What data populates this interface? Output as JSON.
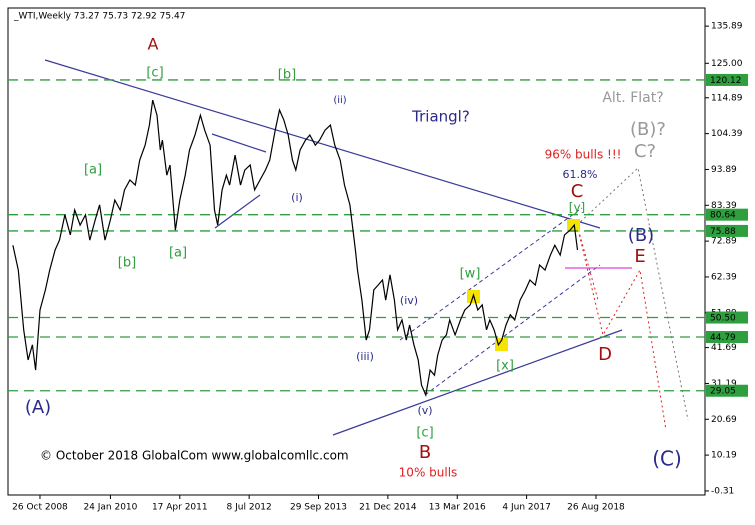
{
  "chart_data": {
    "type": "line",
    "title": "_WTI,Weekly  73.27 75.73 72.92 75.47",
    "xlim": [
      -29.5,
      613.6
    ],
    "xticks": [
      {
        "value": 0,
        "label": "26 Oct 2008"
      },
      {
        "value": 65,
        "label": "24 Jan 2010"
      },
      {
        "value": 129,
        "label": "17 Apr 2011"
      },
      {
        "value": 193,
        "label": "8 Jul 2012"
      },
      {
        "value": 257,
        "label": "29 Sep 2013"
      },
      {
        "value": 321,
        "label": "21 Dec 2014"
      },
      {
        "value": 385,
        "label": "13 Mar 2016"
      },
      {
        "value": 449,
        "label": "4 Jun 2017"
      },
      {
        "value": 513,
        "label": "26 Aug 2018"
      }
    ],
    "ylim": [
      -1.5,
      141.2
    ],
    "yticks": [
      135.89,
      {
        "value": 125,
        "label": "125.00"
      },
      114.89,
      104.39,
      93.89,
      83.39,
      72.89,
      62.39,
      51.89,
      41.69,
      31.19,
      20.69,
      10.19,
      -0.31
    ],
    "levels": [
      120.12,
      80.64,
      75.88,
      {
        "value": 50.5,
        "label": "50.50"
      },
      44.79,
      29.05
    ],
    "level_color": "#2e9e3e",
    "series": [
      {
        "name": "WTI",
        "color": "#000000",
        "x": [
          -25,
          -20,
          -15,
          -11,
          -7,
          -4,
          0,
          5,
          9,
          14,
          18,
          23,
          28,
          32,
          37,
          42,
          46,
          51,
          55,
          60,
          65,
          69,
          74,
          78,
          83,
          88,
          92,
          97,
          101,
          104,
          108,
          111,
          113,
          117,
          120,
          123,
          125,
          129,
          134,
          138,
          143,
          148,
          152,
          157,
          161,
          164,
          168,
          172,
          175,
          180,
          185,
          189,
          194,
          198,
          203,
          208,
          212,
          217,
          221,
          225,
          229,
          233,
          236,
          240,
          245,
          249,
          254,
          258,
          263,
          268,
          272,
          277,
          281,
          286,
          291,
          293,
          297,
          301,
          304,
          308,
          312,
          316,
          319,
          323,
          327,
          330,
          334,
          338,
          341,
          345,
          349,
          352,
          356,
          360,
          364,
          367,
          371,
          375,
          378,
          383,
          388,
          392,
          397,
          400,
          404,
          408,
          412,
          415,
          419,
          423,
          426,
          430,
          434,
          438,
          443,
          448,
          452,
          457,
          461,
          466,
          471,
          475,
          480,
          484,
          489,
          493,
          496
        ],
        "values": [
          71.7,
          64.4,
          46.9,
          38.1,
          42.5,
          35.1,
          52.7,
          58.6,
          64.4,
          70.3,
          73.2,
          80.6,
          74.7,
          82.0,
          77.6,
          80.6,
          73.2,
          79.1,
          83.5,
          73.2,
          79.1,
          84.9,
          82.0,
          87.9,
          90.8,
          89.3,
          96.6,
          101.0,
          106.9,
          114.2,
          109.8,
          99.6,
          102.5,
          92.2,
          95.2,
          83.5,
          76.1,
          84.9,
          92.2,
          99.6,
          104.0,
          109.8,
          105.4,
          101.0,
          82.0,
          77.6,
          87.9,
          92.2,
          89.3,
          98.1,
          89.3,
          93.7,
          95.2,
          87.9,
          90.8,
          93.7,
          96.6,
          105.4,
          111.3,
          108.4,
          104.0,
          96.6,
          93.7,
          99.6,
          102.5,
          104.0,
          101.0,
          102.5,
          105.4,
          106.9,
          101.0,
          96.6,
          89.3,
          83.5,
          70.3,
          64.4,
          55.6,
          43.9,
          46.9,
          58.6,
          60.0,
          61.5,
          55.6,
          63.0,
          55.6,
          46.9,
          49.8,
          43.9,
          48.3,
          42.5,
          38.1,
          30.7,
          27.8,
          35.1,
          33.6,
          39.5,
          43.9,
          45.4,
          49.8,
          45.4,
          49.8,
          52.7,
          54.2,
          57.1,
          52.7,
          54.2,
          46.9,
          49.8,
          46.9,
          42.5,
          43.9,
          48.3,
          51.3,
          49.8,
          55.6,
          58.6,
          61.5,
          60.0,
          65.9,
          64.4,
          68.8,
          71.7,
          68.8,
          74.7,
          76.1,
          77.6,
          70.3
        ]
      }
    ],
    "annotations": [
      {
        "text": "A",
        "color": "#a01010"
      },
      {
        "text": "[c]",
        "color": "#2e9e3e"
      },
      {
        "text": "[b]",
        "color": "#2e9e3e"
      },
      {
        "text": "(ii)",
        "color": "#2a2a8a"
      },
      {
        "text": "Triangl?",
        "color": "#2a2a8a"
      },
      {
        "text": "Alt. Flat?",
        "color": "#999999"
      },
      {
        "text": "(B)?",
        "color": "#999999"
      },
      {
        "text": "C?",
        "color": "#999999"
      },
      {
        "text": "96% bulls !!!",
        "color": "#e02020"
      },
      {
        "text": "61.8%",
        "color": "#2a2a8a"
      },
      {
        "text": "C",
        "color": "#a01010"
      },
      {
        "text": "[y]",
        "color": "#2e9e3e"
      },
      {
        "text": "[a]",
        "color": "#2e9e3e"
      },
      {
        "text": "(i)",
        "color": "#2a2a8a"
      },
      {
        "text": "[b]",
        "color": "#2e9e3e"
      },
      {
        "text": "[a]",
        "color": "#2e9e3e"
      },
      {
        "text": "(B)",
        "color": "#2a2a8a"
      },
      {
        "text": "E",
        "color": "#a01010"
      },
      {
        "text": "[w]",
        "color": "#2e9e3e"
      },
      {
        "text": "(iv)",
        "color": "#2a2a8a"
      },
      {
        "text": "D",
        "color": "#a01010"
      },
      {
        "text": "(iii)",
        "color": "#2a2a8a"
      },
      {
        "text": "[x]",
        "color": "#2e9e3e"
      },
      {
        "text": "(A)",
        "color": "#2a2a8a"
      },
      {
        "text": "(v)",
        "color": "#2a2a8a"
      },
      {
        "text": "[c]",
        "color": "#2e9e3e"
      },
      {
        "text": "B",
        "color": "#a01010"
      },
      {
        "text": "© October 2018 GlobalCom www.globalcomllc.com",
        "color": "#000000"
      },
      {
        "text": "10% bulls",
        "color": "#e02020"
      },
      {
        "text": "(C)",
        "color": "#2a2a8a"
      }
    ]
  }
}
